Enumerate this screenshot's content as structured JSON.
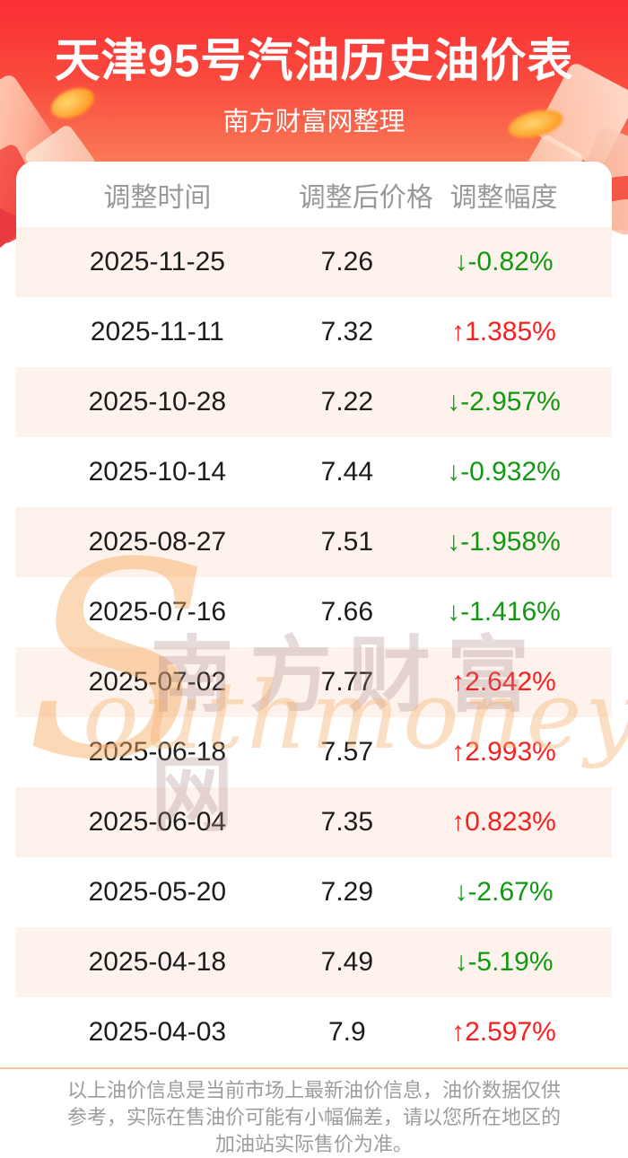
{
  "header": {
    "title": "天津95号汽油历史油价表",
    "subtitle": "南方财富网整理"
  },
  "table": {
    "columns": [
      "调整时间",
      "调整后价格",
      "调整幅度"
    ],
    "rows": [
      {
        "date": "2025-11-25",
        "price": "7.26",
        "change": "-0.82%",
        "direction": "down"
      },
      {
        "date": "2025-11-11",
        "price": "7.32",
        "change": "1.385%",
        "direction": "up"
      },
      {
        "date": "2025-10-28",
        "price": "7.22",
        "change": "-2.957%",
        "direction": "down"
      },
      {
        "date": "2025-10-14",
        "price": "7.44",
        "change": "-0.932%",
        "direction": "down"
      },
      {
        "date": "2025-08-27",
        "price": "7.51",
        "change": "-1.958%",
        "direction": "down"
      },
      {
        "date": "2025-07-16",
        "price": "7.66",
        "change": "-1.416%",
        "direction": "down"
      },
      {
        "date": "2025-07-02",
        "price": "7.77",
        "change": "2.642%",
        "direction": "up"
      },
      {
        "date": "2025-06-18",
        "price": "7.57",
        "change": "2.993%",
        "direction": "up"
      },
      {
        "date": "2025-06-04",
        "price": "7.35",
        "change": "0.823%",
        "direction": "up"
      },
      {
        "date": "2025-05-20",
        "price": "7.29",
        "change": "-2.67%",
        "direction": "down"
      },
      {
        "date": "2025-04-18",
        "price": "7.49",
        "change": "-5.19%",
        "direction": "down"
      },
      {
        "date": "2025-04-03",
        "price": "7.9",
        "change": "2.597%",
        "direction": "up"
      }
    ]
  },
  "glyphs": {
    "up": "↑",
    "down": "↓"
  },
  "watermark": {
    "s": "S",
    "cn": "南方财富网",
    "en": "outhmoney.com"
  },
  "footer": {
    "lines": [
      "以上油价信息是当前市场上最新油价信息，油价数据仅供",
      "参考，实际在售油价可能有小幅偏差，请以您所在地区的",
      "加油站实际售价为准。"
    ]
  },
  "colors": {
    "header_red_top": "#fb2e35",
    "header_red_bottom": "#fcb488",
    "up_red": "#f91f1f",
    "down_green": "#129912",
    "row_alt_cream": "#fdf3ec",
    "label_gray": "#999999",
    "footer_gray": "#9c9c9c",
    "divider_orange": "#f8c795"
  },
  "chart_data": {
    "type": "table",
    "title": "天津95号汽油历史油价表",
    "subtitle": "南方财富网整理",
    "columns": [
      "调整时间",
      "调整后价格",
      "调整幅度"
    ],
    "rows": [
      [
        "2025-11-25",
        7.26,
        "↓-0.82%"
      ],
      [
        "2025-11-11",
        7.32,
        "↑1.385%"
      ],
      [
        "2025-10-28",
        7.22,
        "↓-2.957%"
      ],
      [
        "2025-10-14",
        7.44,
        "↓-0.932%"
      ],
      [
        "2025-08-27",
        7.51,
        "↓-1.958%"
      ],
      [
        "2025-07-16",
        7.66,
        "↓-1.416%"
      ],
      [
        "2025-07-02",
        7.77,
        "↑2.642%"
      ],
      [
        "2025-06-18",
        7.57,
        "↑2.993%"
      ],
      [
        "2025-06-04",
        7.35,
        "↑0.823%"
      ],
      [
        "2025-05-20",
        7.29,
        "↓-2.67%"
      ],
      [
        "2025-04-18",
        7.49,
        "↓-5.19%"
      ],
      [
        "2025-04-03",
        7.9,
        "↑2.597%"
      ]
    ]
  }
}
